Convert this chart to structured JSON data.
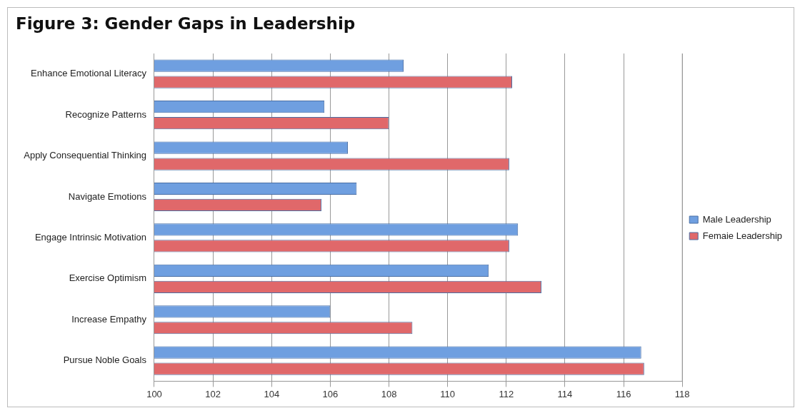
{
  "chart_data": {
    "type": "bar",
    "orientation": "horizontal",
    "title": "Figure 3: Gender Gaps in Leadership",
    "categories": [
      "Enhance Emotional Literacy",
      "Recognize Patterns",
      "Apply Consequential Thinking",
      "Navigate Emotions",
      "Engage Intrinsic Motivation",
      "Exercise Optimism",
      "Increase Empathy",
      "Pursue Noble Goals"
    ],
    "series": [
      {
        "name": "Male Leadership",
        "color": "#6f9fe0",
        "values": [
          108.5,
          105.8,
          106.6,
          106.9,
          112.4,
          111.4,
          106.0,
          116.6
        ]
      },
      {
        "name": "Femaie Leadership",
        "color": "#e0686a",
        "values": [
          112.2,
          108.0,
          112.1,
          105.7,
          112.1,
          113.2,
          108.8,
          116.7
        ]
      }
    ],
    "xlim": [
      100,
      118
    ],
    "xticks": [
      100,
      102,
      104,
      106,
      108,
      110,
      112,
      114,
      116,
      118
    ],
    "grid": "x",
    "legend": "right"
  }
}
